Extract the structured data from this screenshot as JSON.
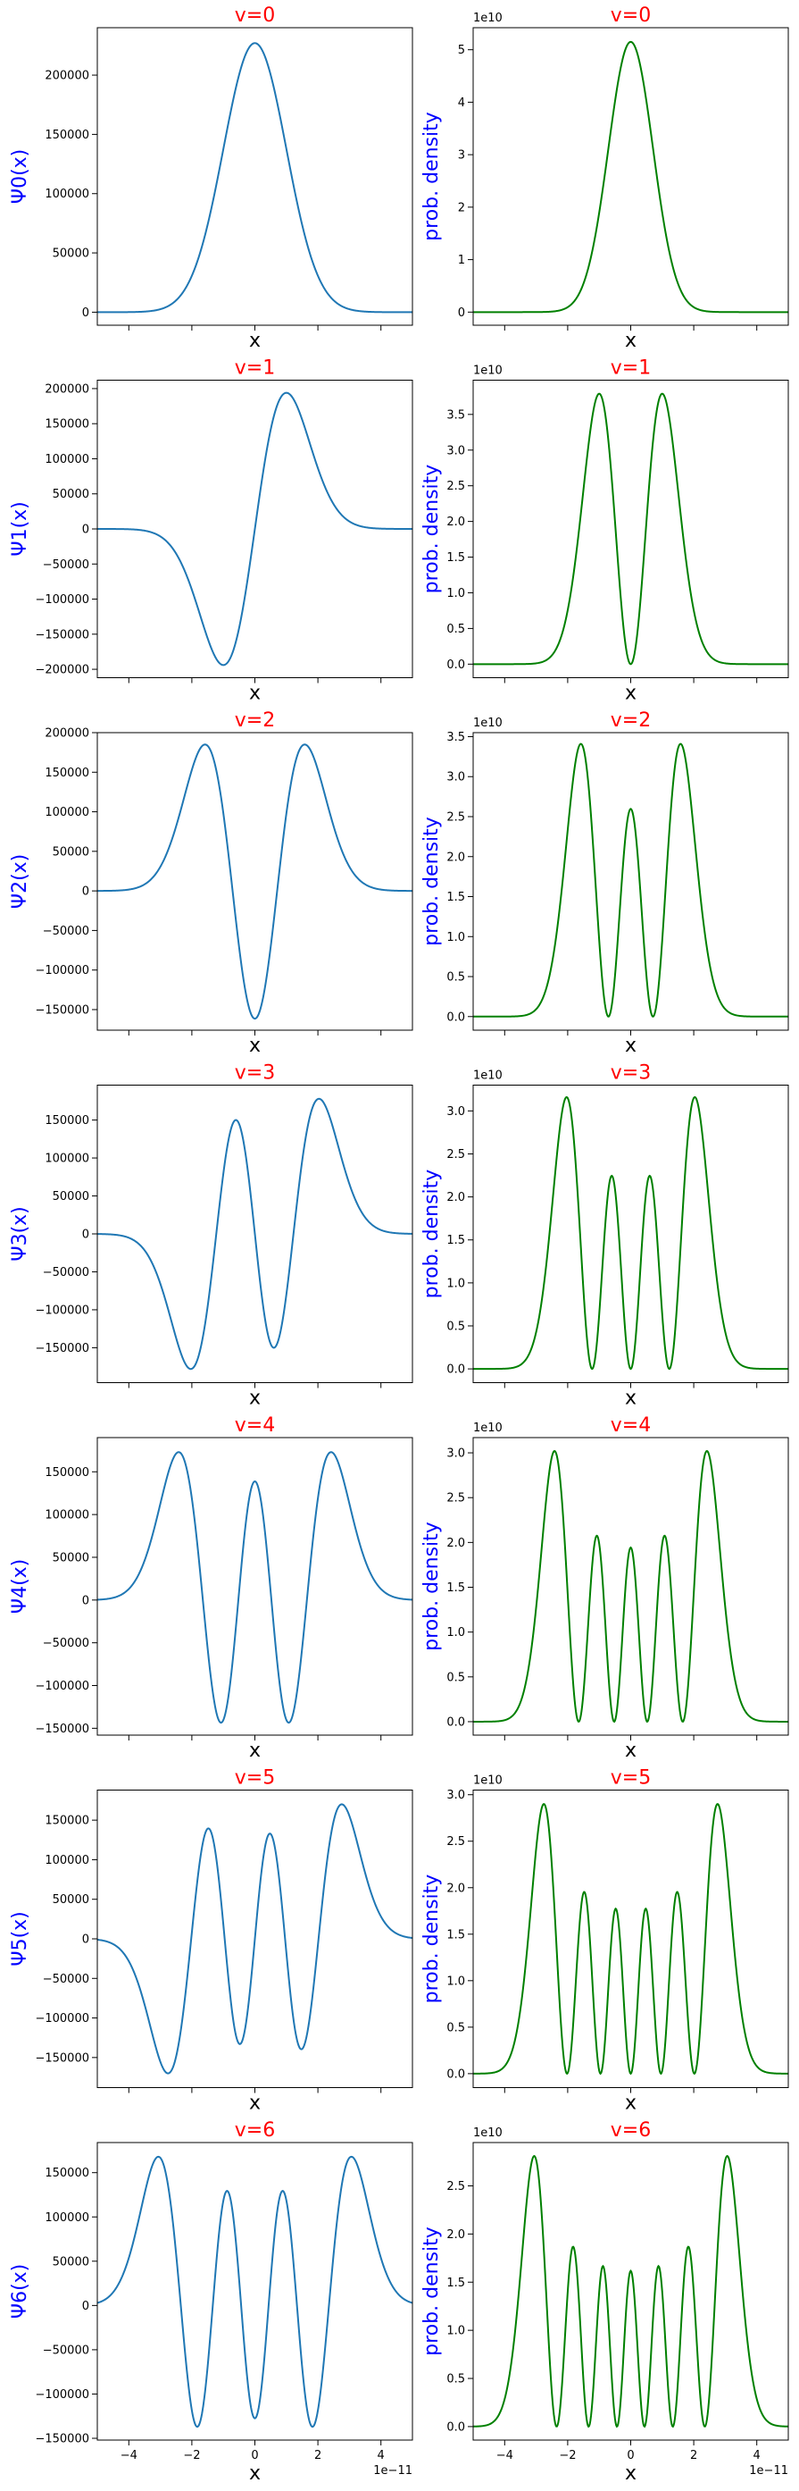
{
  "figure": {
    "colors": {
      "title": "#ff0000",
      "ylabel": "#0000ff",
      "wave": "#1f77b4",
      "density": "#008000",
      "axes": "#000000"
    }
  },
  "chart_data": [
    {
      "type": "line",
      "column": "psi",
      "v": 0,
      "title": "v=0",
      "xlabel": "x",
      "ylabel": "Ψ0(x)",
      "xlim": [
        -5e-11,
        5e-11
      ],
      "ylim": [
        -11000,
        240000
      ],
      "yticks": [
        0,
        50000,
        100000,
        150000,
        200000
      ],
      "ytick_labels": [
        "0",
        "50000",
        "100000",
        "150000",
        "200000"
      ],
      "offset_label": "",
      "xticks": [
        -4e-11,
        -2e-11,
        0,
        2e-11,
        4e-11
      ],
      "xtick_labels": [],
      "xoffset_label": "",
      "grid": false,
      "line_color": "#1f77b4",
      "peak_value": 227000
    },
    {
      "type": "line",
      "column": "density",
      "v": 0,
      "title": "v=0",
      "xlabel": "x",
      "ylabel": "prob. density",
      "xlim": [
        -5e-11,
        5e-11
      ],
      "ylim": [
        -0.25,
        5.42
      ],
      "yticks": [
        0,
        1,
        2,
        3,
        4,
        5
      ],
      "ytick_labels": [
        "0",
        "1",
        "2",
        "3",
        "4",
        "5"
      ],
      "offset_label": "1e10",
      "xticks": [
        -4e-11,
        -2e-11,
        0,
        2e-11,
        4e-11
      ],
      "xtick_labels": [],
      "xoffset_label": "",
      "grid": false,
      "line_color": "#008000",
      "peak_value": 5.15
    },
    {
      "type": "line",
      "column": "psi",
      "v": 1,
      "title": "v=1",
      "xlabel": "x",
      "ylabel": "Ψ1(x)",
      "xlim": [
        -5e-11,
        5e-11
      ],
      "ylim": [
        -212000,
        212000
      ],
      "yticks": [
        -200000,
        -150000,
        -100000,
        -50000,
        0,
        50000,
        100000,
        150000,
        200000
      ],
      "ytick_labels": [
        "−200000",
        "−150000",
        "−100000",
        "−50000",
        "0",
        "50000",
        "100000",
        "150000",
        "200000"
      ],
      "offset_label": "",
      "xticks": [
        -4e-11,
        -2e-11,
        0,
        2e-11,
        4e-11
      ],
      "xtick_labels": [],
      "xoffset_label": "",
      "grid": false,
      "line_color": "#1f77b4",
      "peak_value": 194000
    },
    {
      "type": "line",
      "column": "density",
      "v": 1,
      "title": "v=1",
      "xlabel": "x",
      "ylabel": "prob. density",
      "xlim": [
        -5e-11,
        5e-11
      ],
      "ylim": [
        -0.19,
        3.98
      ],
      "yticks": [
        0,
        0.5,
        1,
        1.5,
        2,
        2.5,
        3,
        3.5
      ],
      "ytick_labels": [
        "0.0",
        "0.5",
        "1.0",
        "1.5",
        "2.0",
        "2.5",
        "3.0",
        "3.5"
      ],
      "offset_label": "1e10",
      "xticks": [
        -4e-11,
        -2e-11,
        0,
        2e-11,
        4e-11
      ],
      "xtick_labels": [],
      "xoffset_label": "",
      "grid": false,
      "line_color": "#008000",
      "peak_value": 3.79
    },
    {
      "type": "line",
      "column": "psi",
      "v": 2,
      "title": "v=2",
      "xlabel": "x",
      "ylabel": "Ψ2(x)",
      "xlim": [
        -5e-11,
        5e-11
      ],
      "ylim": [
        -176000,
        200000
      ],
      "yticks": [
        -150000,
        -100000,
        -50000,
        0,
        50000,
        100000,
        150000,
        200000
      ],
      "ytick_labels": [
        "−150000",
        "−100000",
        "−50000",
        "0",
        "50000",
        "100000",
        "150000",
        "200000"
      ],
      "offset_label": "",
      "xticks": [
        -4e-11,
        -2e-11,
        0,
        2e-11,
        4e-11
      ],
      "xtick_labels": [],
      "xoffset_label": "",
      "grid": false,
      "line_color": "#1f77b4",
      "peak_value": 185000
    },
    {
      "type": "line",
      "column": "density",
      "v": 2,
      "title": "v=2",
      "xlabel": "x",
      "ylabel": "prob. density",
      "xlim": [
        -5e-11,
        5e-11
      ],
      "ylim": [
        -0.17,
        3.55
      ],
      "yticks": [
        0,
        0.5,
        1,
        1.5,
        2,
        2.5,
        3,
        3.5
      ],
      "ytick_labels": [
        "0.0",
        "0.5",
        "1.0",
        "1.5",
        "2.0",
        "2.5",
        "3.0",
        "3.5"
      ],
      "offset_label": "1e10",
      "xticks": [
        -4e-11,
        -2e-11,
        0,
        2e-11,
        4e-11
      ],
      "xtick_labels": [],
      "xoffset_label": "",
      "grid": false,
      "line_color": "#008000",
      "peak_value": 3.41
    },
    {
      "type": "line",
      "column": "psi",
      "v": 3,
      "title": "v=3",
      "xlabel": "x",
      "ylabel": "Ψ3(x)",
      "xlim": [
        -5e-11,
        5e-11
      ],
      "ylim": [
        -196000,
        196000
      ],
      "yticks": [
        -150000,
        -100000,
        -50000,
        0,
        50000,
        100000,
        150000
      ],
      "ytick_labels": [
        "−150000",
        "−100000",
        "−50000",
        "0",
        "50000",
        "100000",
        "150000"
      ],
      "offset_label": "",
      "xticks": [
        -4e-11,
        -2e-11,
        0,
        2e-11,
        4e-11
      ],
      "xtick_labels": [],
      "xoffset_label": "",
      "grid": false,
      "line_color": "#1f77b4",
      "peak_value": 178000
    },
    {
      "type": "line",
      "column": "density",
      "v": 3,
      "title": "v=3",
      "xlabel": "x",
      "ylabel": "prob. density",
      "xlim": [
        -5e-11,
        5e-11
      ],
      "ylim": [
        -0.16,
        3.3
      ],
      "yticks": [
        0,
        0.5,
        1,
        1.5,
        2,
        2.5,
        3
      ],
      "ytick_labels": [
        "0.0",
        "0.5",
        "1.0",
        "1.5",
        "2.0",
        "2.5",
        "3.0"
      ],
      "offset_label": "1e10",
      "xticks": [
        -4e-11,
        -2e-11,
        0,
        2e-11,
        4e-11
      ],
      "xtick_labels": [],
      "xoffset_label": "",
      "grid": false,
      "line_color": "#008000",
      "peak_value": 3.16
    },
    {
      "type": "line",
      "column": "psi",
      "v": 4,
      "title": "v=4",
      "xlabel": "x",
      "ylabel": "Ψ4(x)",
      "xlim": [
        -5e-11,
        5e-11
      ],
      "ylim": [
        -158000,
        190000
      ],
      "yticks": [
        -150000,
        -100000,
        -50000,
        0,
        50000,
        100000,
        150000
      ],
      "ytick_labels": [
        "−150000",
        "−100000",
        "−50000",
        "0",
        "50000",
        "100000",
        "150000"
      ],
      "offset_label": "",
      "xticks": [
        -4e-11,
        -2e-11,
        0,
        2e-11,
        4e-11
      ],
      "xtick_labels": [],
      "xoffset_label": "",
      "grid": false,
      "line_color": "#1f77b4",
      "peak_value": 173000
    },
    {
      "type": "line",
      "column": "density",
      "v": 4,
      "title": "v=4",
      "xlabel": "x",
      "ylabel": "prob. density",
      "xlim": [
        -5e-11,
        5e-11
      ],
      "ylim": [
        -0.15,
        3.17
      ],
      "yticks": [
        0,
        0.5,
        1,
        1.5,
        2,
        2.5,
        3
      ],
      "ytick_labels": [
        "0.0",
        "0.5",
        "1.0",
        "1.5",
        "2.0",
        "2.5",
        "3.0"
      ],
      "offset_label": "1e10",
      "xticks": [
        -4e-11,
        -2e-11,
        0,
        2e-11,
        4e-11
      ],
      "xtick_labels": [],
      "xoffset_label": "",
      "grid": false,
      "line_color": "#008000",
      "peak_value": 3.02
    },
    {
      "type": "line",
      "column": "psi",
      "v": 5,
      "title": "v=5",
      "xlabel": "x",
      "ylabel": "Ψ5(x)",
      "xlim": [
        -5e-11,
        5e-11
      ],
      "ylim": [
        -188000,
        188000
      ],
      "yticks": [
        -150000,
        -100000,
        -50000,
        0,
        50000,
        100000,
        150000
      ],
      "ytick_labels": [
        "−150000",
        "−100000",
        "−50000",
        "0",
        "50000",
        "100000",
        "150000"
      ],
      "offset_label": "",
      "xticks": [
        -4e-11,
        -2e-11,
        0,
        2e-11,
        4e-11
      ],
      "xtick_labels": [],
      "xoffset_label": "",
      "grid": false,
      "line_color": "#1f77b4",
      "peak_value": 170000
    },
    {
      "type": "line",
      "column": "density",
      "v": 5,
      "title": "v=5",
      "xlabel": "x",
      "ylabel": "prob. density",
      "xlim": [
        -5e-11,
        5e-11
      ],
      "ylim": [
        -0.15,
        3.05
      ],
      "yticks": [
        0,
        0.5,
        1,
        1.5,
        2,
        2.5,
        3
      ],
      "ytick_labels": [
        "0.0",
        "0.5",
        "1.0",
        "1.5",
        "2.0",
        "2.5",
        "3.0"
      ],
      "offset_label": "1e10",
      "xticks": [
        -4e-11,
        -2e-11,
        0,
        2e-11,
        4e-11
      ],
      "xtick_labels": [],
      "xoffset_label": "",
      "grid": false,
      "line_color": "#008000",
      "peak_value": 2.9
    },
    {
      "type": "line",
      "column": "psi",
      "v": 6,
      "title": "v=6",
      "xlabel": "x",
      "ylabel": "Ψ6(x)",
      "xlim": [
        -5e-11,
        5e-11
      ],
      "ylim": [
        -152000,
        184000
      ],
      "yticks": [
        -150000,
        -100000,
        -50000,
        0,
        50000,
        100000,
        150000
      ],
      "ytick_labels": [
        "−150000",
        "−100000",
        "−50000",
        "0",
        "50000",
        "100000",
        "150000"
      ],
      "offset_label": "",
      "xticks": [
        -4e-11,
        -2e-11,
        0,
        2e-11,
        4e-11
      ],
      "xtick_labels": [
        "−4",
        "−2",
        "0",
        "2",
        "4"
      ],
      "xoffset_label": "1e−11",
      "grid": false,
      "line_color": "#1f77b4",
      "peak_value": 168000
    },
    {
      "type": "line",
      "column": "density",
      "v": 6,
      "title": "v=6",
      "xlabel": "x",
      "ylabel": "prob. density",
      "xlim": [
        -5e-11,
        5e-11
      ],
      "ylim": [
        -0.14,
        2.95
      ],
      "yticks": [
        0,
        0.5,
        1,
        1.5,
        2,
        2.5
      ],
      "ytick_labels": [
        "0.0",
        "0.5",
        "1.0",
        "1.5",
        "2.0",
        "2.5"
      ],
      "offset_label": "1e10",
      "xticks": [
        -4e-11,
        -2e-11,
        0,
        2e-11,
        4e-11
      ],
      "xtick_labels": [
        "−4",
        "−2",
        "0",
        "2",
        "4"
      ],
      "xoffset_label": "1e−11",
      "grid": false,
      "line_color": "#008000",
      "peak_value": 2.81
    }
  ]
}
